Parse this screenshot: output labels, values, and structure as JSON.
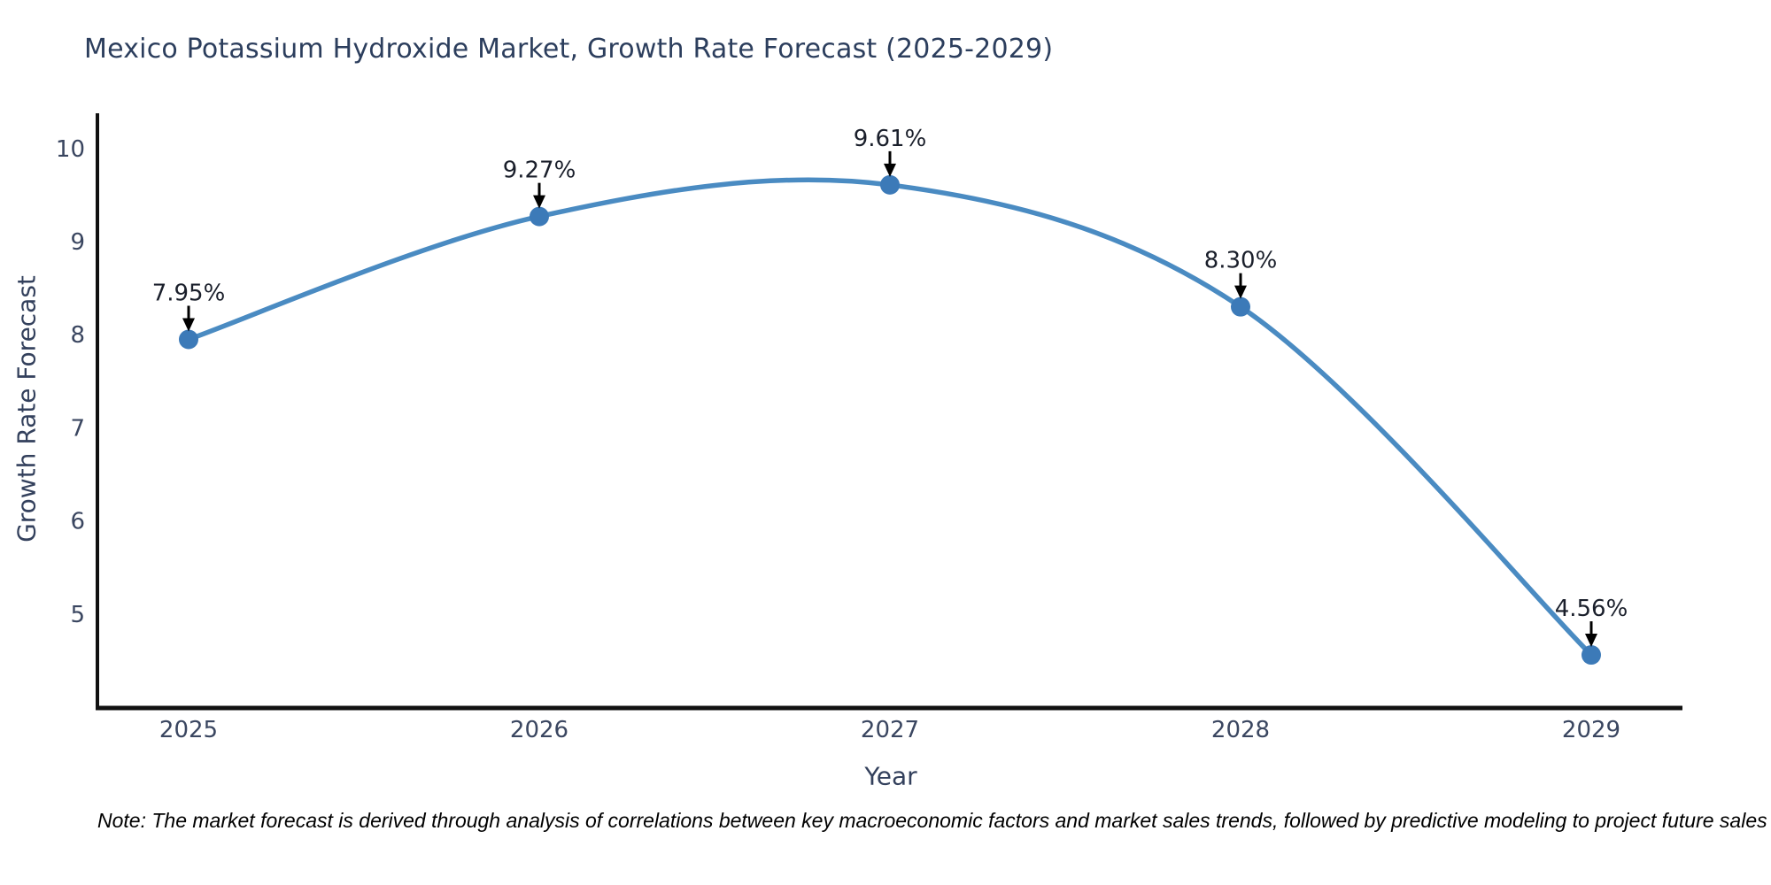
{
  "page": {
    "background": "#ffffff"
  },
  "chart_data": {
    "type": "line",
    "title": "Mexico Potassium Hydroxide Market, Growth Rate Forecast (2025-2029)",
    "xlabel": "Year",
    "ylabel": "Growth Rate Forecast",
    "categories": [
      "2025",
      "2026",
      "2027",
      "2028",
      "2029"
    ],
    "series": [
      {
        "name": "Growth Rate Forecast",
        "values": [
          7.95,
          9.27,
          9.61,
          8.3,
          4.56
        ]
      }
    ],
    "point_labels": [
      "7.95%",
      "9.27%",
      "9.61%",
      "8.30%",
      "4.56%"
    ],
    "yticks": [
      5,
      6,
      7,
      8,
      9,
      10
    ],
    "ylim": [
      3.99,
      10.36
    ],
    "grid": false,
    "legend_position": "none",
    "line_shape": "spline",
    "marker_style": "circle",
    "annotation_arrows": true,
    "colors": {
      "line": "#4a8bc2",
      "marker": "#3c7ab8",
      "axis": "#111111",
      "tick_label": "#3a4660",
      "title": "#2c3e5d",
      "annotation": "#1a1f2b",
      "arrow": "#000000"
    }
  },
  "note": {
    "text": "Note: The market forecast is derived through analysis of correlations between key macroeconomic factors and market sales trends, followed by predictive modeling to project future sales"
  }
}
